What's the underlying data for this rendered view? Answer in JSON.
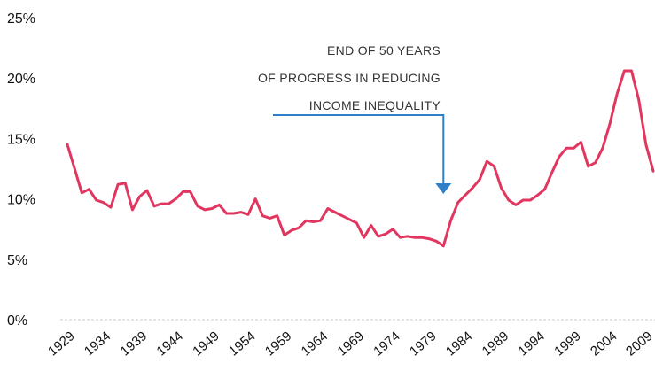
{
  "chart_data": {
    "type": "line",
    "title": "",
    "xlabel": "",
    "ylabel": "",
    "ylim": [
      0,
      25
    ],
    "y_ticks": [
      "0%",
      "5%",
      "10%",
      "15%",
      "20%",
      "25%"
    ],
    "y_tick_values": [
      0,
      5,
      10,
      15,
      20,
      25
    ],
    "x_ticks": [
      "1929",
      "1934",
      "1939",
      "1944",
      "1949",
      "1954",
      "1959",
      "1964",
      "1969",
      "1974",
      "1979",
      "1984",
      "1989",
      "1994",
      "1999",
      "2004",
      "2009"
    ],
    "grid": false,
    "line_color": "#e0365f",
    "arrow_color": "#2f7fc8",
    "annotation": {
      "lines": [
        "END OF 50 YEARS",
        "OF PROGRESS IN REDUCING",
        "INCOME INEQUALITY"
      ],
      "points_to_year": 1981
    },
    "series": [
      {
        "x": [
          1929,
          1930,
          1931,
          1932,
          1933,
          1934,
          1935,
          1936,
          1937,
          1938,
          1939,
          1940,
          1941,
          1942,
          1943,
          1944,
          1945,
          1946,
          1947,
          1948,
          1949,
          1950,
          1951,
          1952,
          1953,
          1954,
          1955,
          1956,
          1957,
          1958,
          1959,
          1960,
          1961,
          1962,
          1963,
          1964,
          1965,
          1966,
          1967,
          1968,
          1969,
          1970,
          1971,
          1972,
          1973,
          1974,
          1975,
          1976,
          1977,
          1978,
          1979,
          1980,
          1981,
          1982,
          1983,
          1984,
          1985,
          1986,
          1987,
          1988,
          1989,
          1990,
          1991,
          1992,
          1993,
          1994,
          1995,
          1996,
          1997,
          1998,
          1999,
          2000,
          2001,
          2002,
          2003,
          2004,
          2005,
          2006,
          2007,
          2008,
          2009,
          2010
        ],
        "values": [
          14.5,
          12.5,
          10.5,
          10.8,
          9.9,
          9.7,
          9.3,
          11.2,
          11.3,
          9.1,
          10.2,
          10.7,
          9.4,
          9.6,
          9.6,
          10.0,
          10.6,
          10.6,
          9.4,
          9.1,
          9.2,
          9.5,
          8.8,
          8.8,
          8.9,
          8.7,
          10.0,
          8.6,
          8.4,
          8.6,
          7.0,
          7.4,
          7.6,
          8.2,
          8.1,
          8.2,
          9.2,
          8.9,
          8.6,
          8.3,
          8.0,
          6.8,
          7.8,
          6.9,
          7.1,
          7.5,
          6.8,
          6.9,
          6.8,
          6.8,
          6.7,
          6.5,
          6.1,
          8.2,
          9.7,
          10.3,
          10.9,
          11.6,
          13.1,
          12.7,
          10.9,
          9.9,
          9.5,
          9.9,
          9.9,
          10.3,
          10.8,
          12.2,
          13.5,
          14.2,
          14.2,
          14.7,
          12.7,
          13.0,
          14.2,
          16.2,
          18.7,
          20.6,
          20.6,
          18.2,
          14.5,
          12.3
        ]
      }
    ]
  }
}
